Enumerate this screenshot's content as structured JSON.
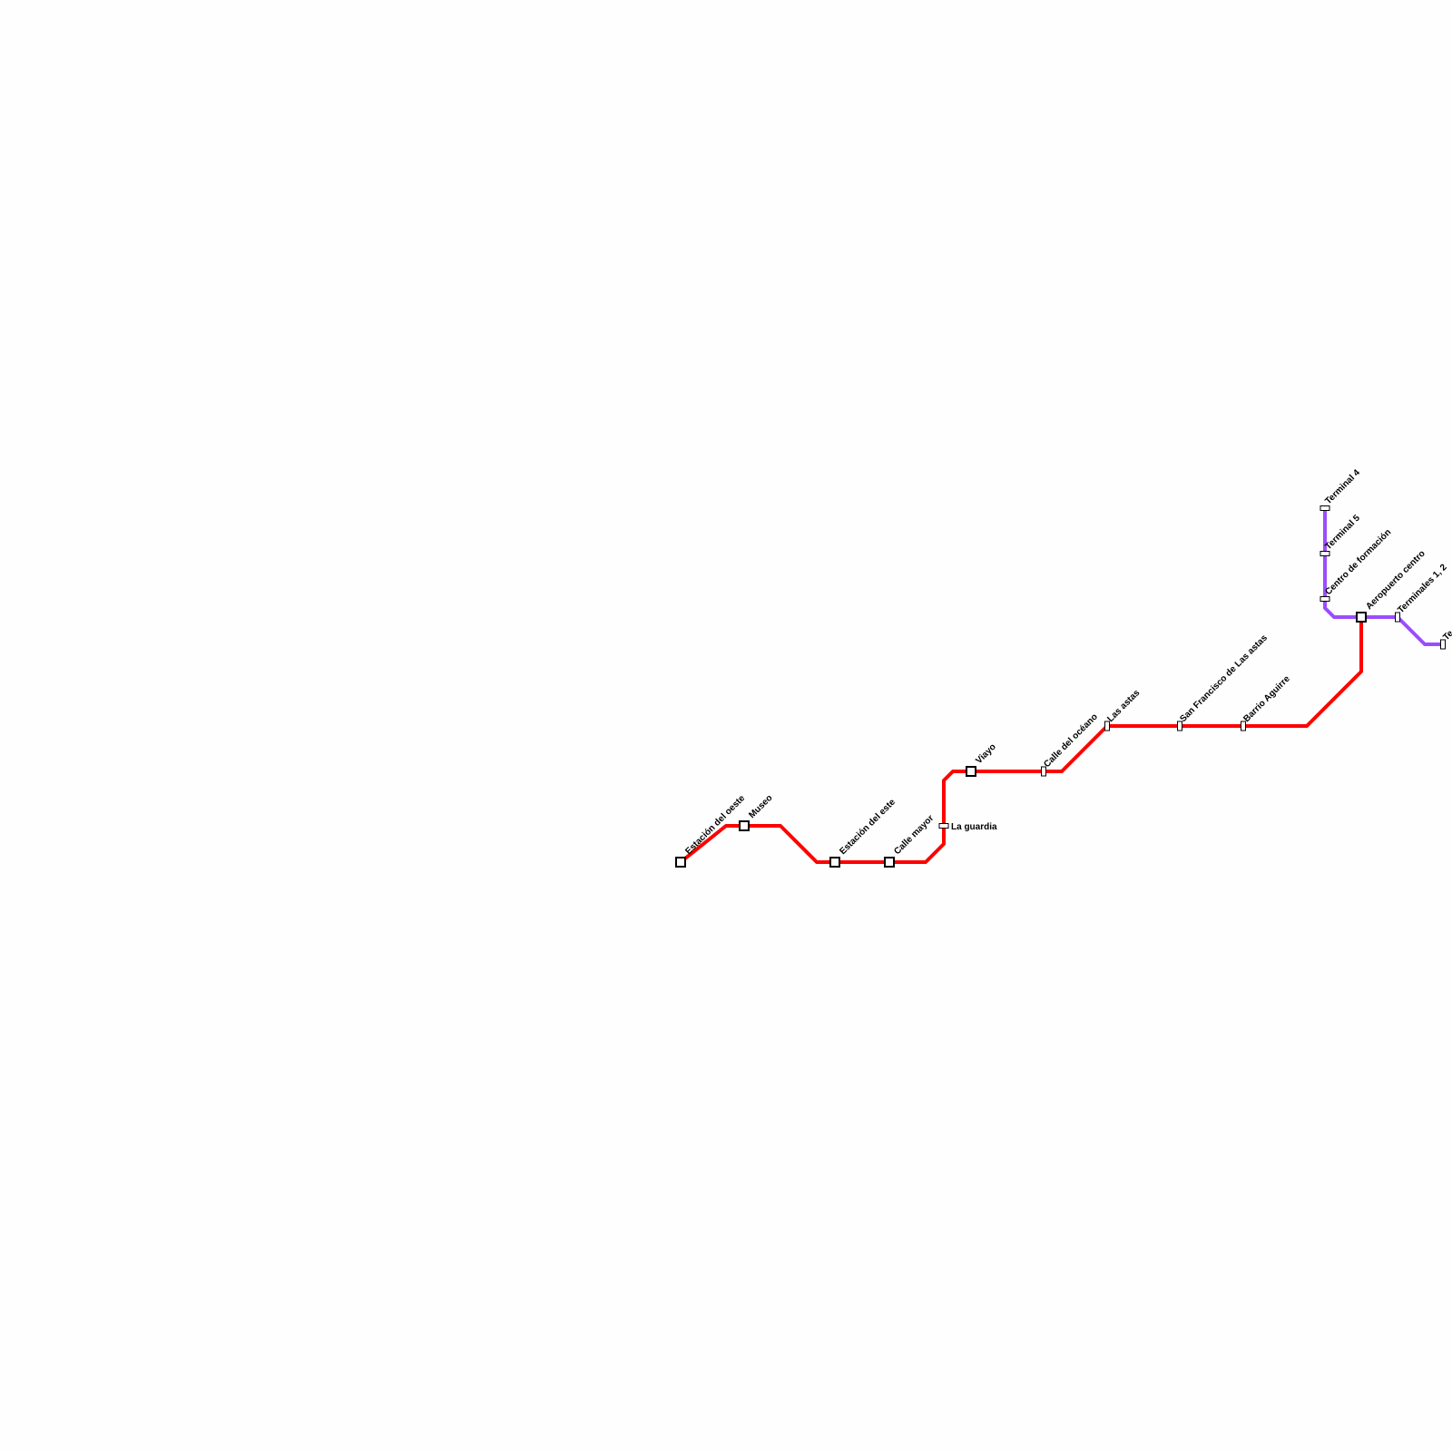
{
  "lines": [
    {
      "name": "red-line",
      "color": "#ff0000",
      "stations": [
        {
          "label": "Estación del oeste",
          "type": "interchange"
        },
        {
          "label": "Museo",
          "type": "interchange"
        },
        {
          "label": "Estación del este",
          "type": "interchange"
        },
        {
          "label": "Calle mayor",
          "type": "interchange"
        },
        {
          "label": "La guardia",
          "type": "stop"
        },
        {
          "label": "Viayo",
          "type": "interchange"
        },
        {
          "label": "Calle del océano",
          "type": "stop"
        },
        {
          "label": "Las astas",
          "type": "stop"
        },
        {
          "label": "San Francisco de Las astas",
          "type": "stop"
        },
        {
          "label": "Barrio Aguirre",
          "type": "stop"
        },
        {
          "label": "Aeropuerto centro",
          "type": "interchange"
        }
      ]
    },
    {
      "name": "purple-line",
      "color": "#9a4dff",
      "stations": [
        {
          "label": "Terminal 4",
          "type": "stop"
        },
        {
          "label": "Terminal 5",
          "type": "stop"
        },
        {
          "label": "Centro de formación",
          "type": "stop"
        },
        {
          "label": "Terminales 1, 2",
          "type": "stop"
        },
        {
          "label": "Te",
          "type": "stop"
        }
      ]
    }
  ]
}
